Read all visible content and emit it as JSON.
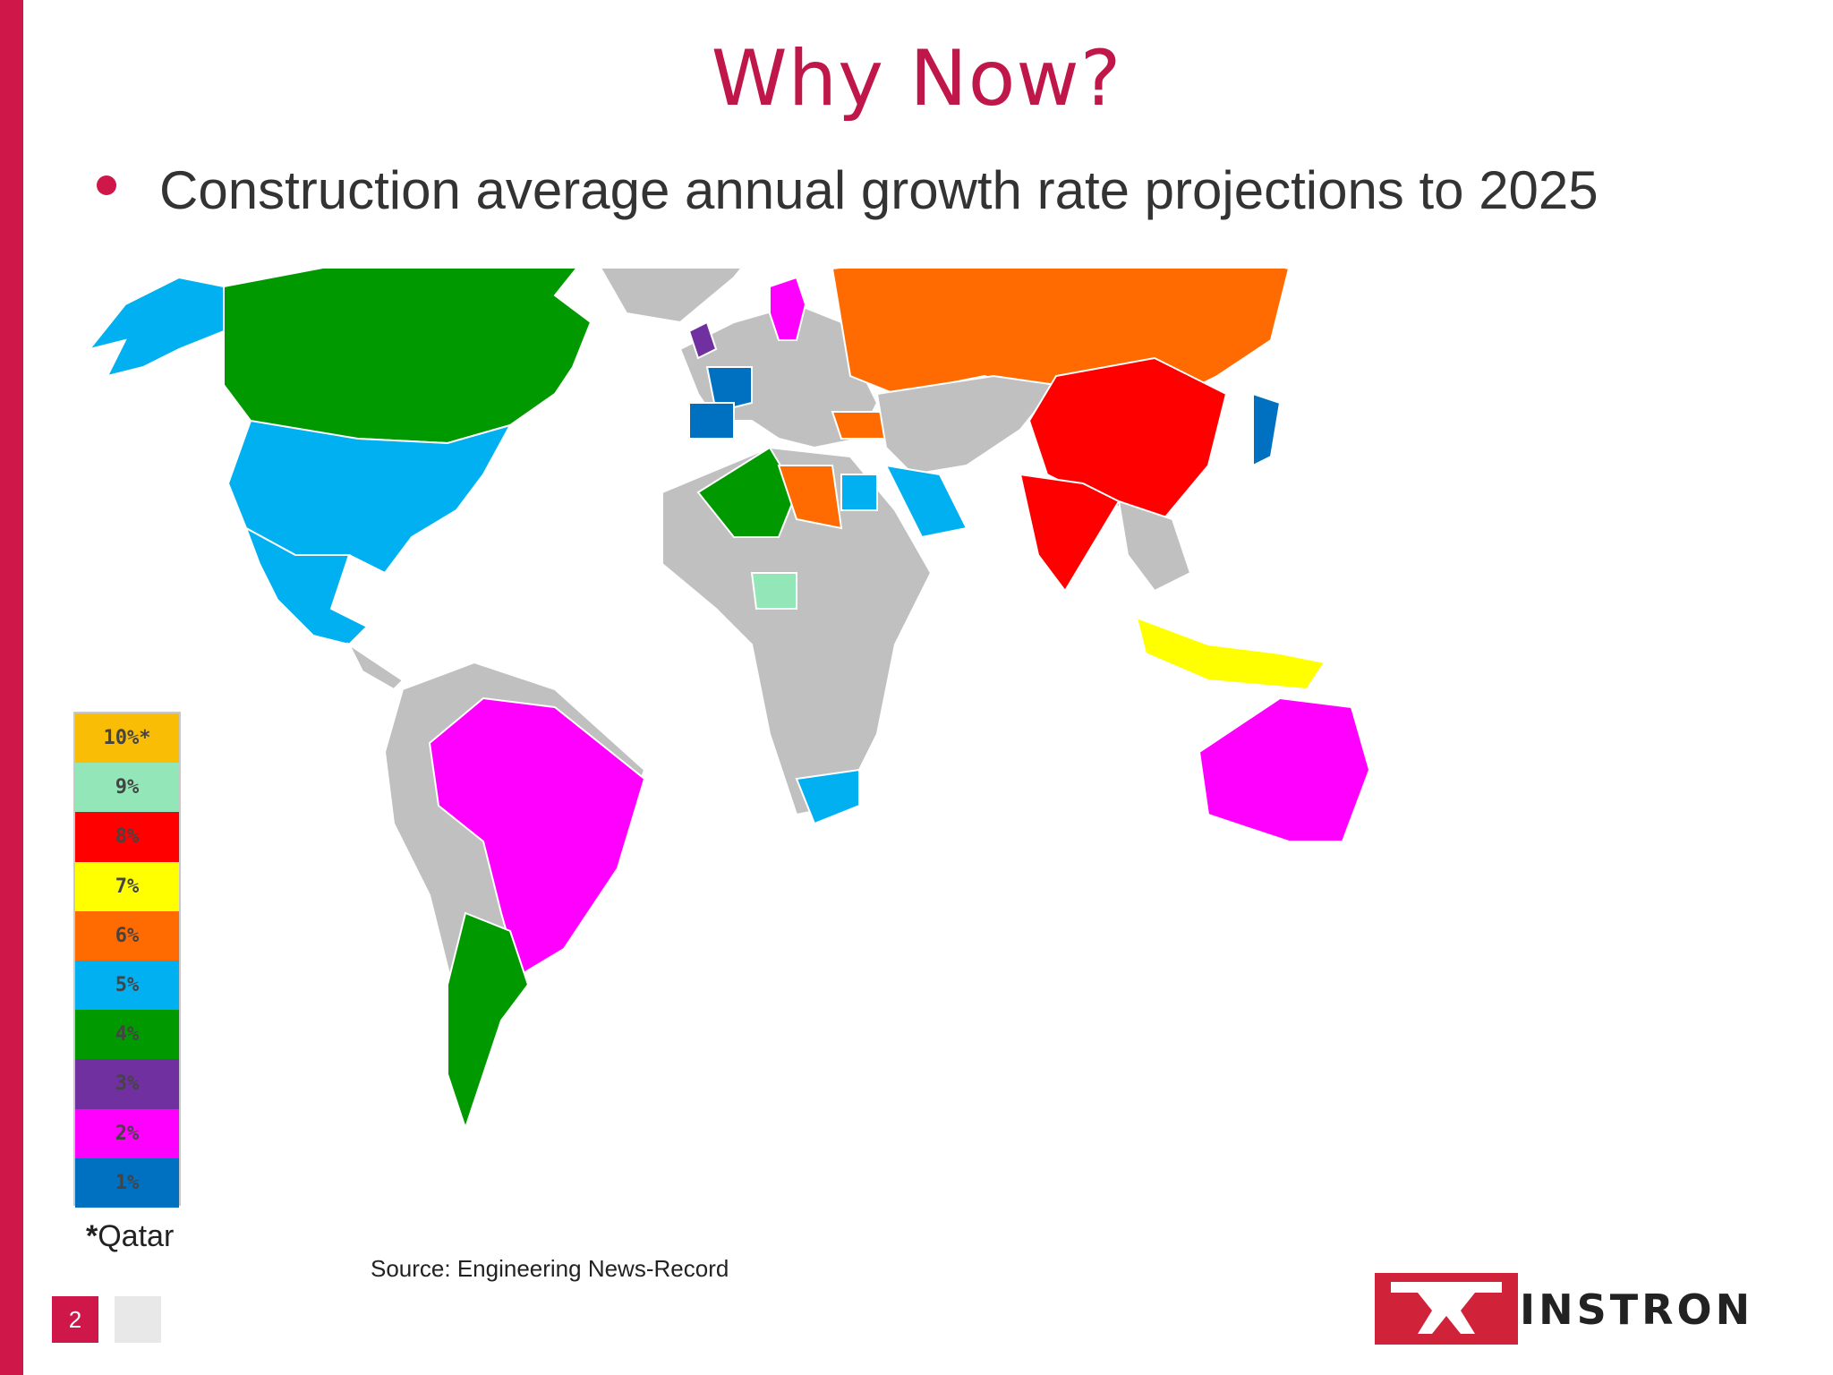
{
  "slide": {
    "title": "Why Now?",
    "bullet": "Construction average annual growth rate projections to 2025",
    "source": "Source: Engineering News-Record",
    "page_number": "2",
    "legend_note_star": "*",
    "legend_note": "Qatar",
    "logo_text": "INSTRON",
    "accent_color": "#d0174a"
  },
  "legend": [
    {
      "label": "10%*",
      "color": "#f9bd06"
    },
    {
      "label": "9%",
      "color": "#93e6b8"
    },
    {
      "label": "8%",
      "color": "#ff0000"
    },
    {
      "label": "7%",
      "color": "#ffff00"
    },
    {
      "label": "6%",
      "color": "#ff6b00"
    },
    {
      "label": "5%",
      "color": "#00b0f0"
    },
    {
      "label": "4%",
      "color": "#009900"
    },
    {
      "label": "3%",
      "color": "#7030a0"
    },
    {
      "label": "2%",
      "color": "#ff00ff"
    },
    {
      "label": "1%",
      "color": "#0070c0"
    }
  ],
  "map_colors": {
    "no_data": "#c0c0c0",
    "canada": "#009900",
    "usa": "#00b0f0",
    "mexico": "#00b0f0",
    "brazil": "#ff00ff",
    "argentina": "#009900",
    "russia": "#ff6b00",
    "china": "#ff0000",
    "india": "#ff0000",
    "australia": "#ff00ff",
    "algeria": "#009900",
    "libya": "#ff6b00",
    "nigeria": "#93e6b8",
    "saudi": "#00b0f0",
    "turkey": "#ff6b00",
    "south_africa": "#00b0f0",
    "indonesia": "#ffff00",
    "japan": "#0070c0",
    "sweden": "#ff00ff"
  }
}
